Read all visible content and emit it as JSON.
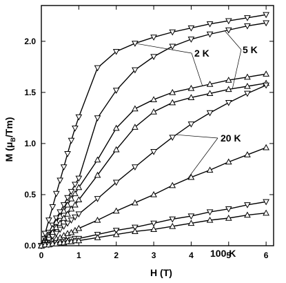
{
  "chart_data": {
    "type": "scatter",
    "xlabel": "H (T)",
    "ylabel_main": "M (",
    "ylabel_mu": "μ",
    "ylabel_sub": "B",
    "ylabel_end": "/Tm)",
    "xlim": [
      0,
      6.2
    ],
    "ylim": [
      0,
      2.35
    ],
    "x_ticks": [
      0,
      1,
      2,
      3,
      4,
      5,
      6
    ],
    "x_tick_labels": [
      "0",
      "1",
      "2",
      "3",
      "4",
      "5",
      "6"
    ],
    "y_ticks": [
      0,
      0.5,
      1.0,
      1.5,
      2.0
    ],
    "y_tick_labels": [
      "0.0",
      "0.5",
      "1.0",
      "1.5",
      "2.0"
    ],
    "grid": false,
    "annotations": [
      {
        "id": "2k",
        "text": "2 K",
        "series": [
          "s1",
          "s3"
        ]
      },
      {
        "id": "5k",
        "text": "5 K",
        "series": [
          "s2",
          "s4"
        ]
      },
      {
        "id": "20k",
        "text": "20 K",
        "series": [
          "s5",
          "s6"
        ]
      },
      {
        "id": "100k",
        "text": "100 K",
        "series": [
          "s7",
          "s8"
        ]
      }
    ],
    "series": [
      {
        "id": "s1",
        "marker": "down-triangle",
        "x": [
          0,
          0.1,
          0.2,
          0.3,
          0.4,
          0.5,
          0.6,
          0.7,
          0.8,
          0.9,
          1.0,
          1.5,
          2.0,
          2.5,
          3.0,
          3.5,
          4.0,
          4.5,
          5.0,
          5.5,
          6.0
        ],
        "y": [
          0.0,
          0.12,
          0.25,
          0.38,
          0.51,
          0.64,
          0.77,
          0.9,
          1.03,
          1.15,
          1.26,
          1.74,
          1.9,
          1.98,
          2.04,
          2.09,
          2.13,
          2.17,
          2.2,
          2.23,
          2.26
        ]
      },
      {
        "id": "s2",
        "marker": "down-triangle",
        "x": [
          0,
          0.1,
          0.2,
          0.3,
          0.4,
          0.5,
          0.6,
          0.7,
          0.8,
          0.9,
          1.0,
          1.5,
          2.0,
          2.5,
          3.0,
          3.5,
          4.0,
          4.5,
          5.0,
          5.5,
          6.0
        ],
        "y": [
          0.0,
          0.07,
          0.13,
          0.2,
          0.27,
          0.33,
          0.4,
          0.47,
          0.53,
          0.6,
          0.66,
          1.25,
          1.52,
          1.72,
          1.85,
          1.95,
          2.02,
          2.07,
          2.11,
          2.15,
          2.18
        ]
      },
      {
        "id": "s3",
        "marker": "up-triangle",
        "x": [
          0,
          0.1,
          0.2,
          0.3,
          0.4,
          0.5,
          0.6,
          0.7,
          0.8,
          0.9,
          1.0,
          1.5,
          2.0,
          2.5,
          3.0,
          3.5,
          4.0,
          4.5,
          5.0,
          5.5,
          6.0
        ],
        "y": [
          0.0,
          0.06,
          0.11,
          0.17,
          0.23,
          0.29,
          0.34,
          0.4,
          0.46,
          0.51,
          0.57,
          0.84,
          1.15,
          1.34,
          1.43,
          1.5,
          1.54,
          1.58,
          1.62,
          1.65,
          1.68
        ]
      },
      {
        "id": "s4",
        "marker": "up-triangle",
        "x": [
          0,
          0.1,
          0.2,
          0.3,
          0.4,
          0.5,
          0.6,
          0.7,
          0.8,
          0.9,
          1.0,
          1.5,
          2.0,
          2.5,
          3.0,
          3.5,
          4.0,
          4.5,
          5.0,
          5.5,
          6.0
        ],
        "y": [
          0.0,
          0.04,
          0.09,
          0.13,
          0.18,
          0.22,
          0.27,
          0.31,
          0.36,
          0.4,
          0.45,
          0.69,
          0.94,
          1.16,
          1.31,
          1.4,
          1.45,
          1.49,
          1.53,
          1.56,
          1.59
        ]
      },
      {
        "id": "s5",
        "marker": "down-triangle",
        "x": [
          0,
          0.1,
          0.2,
          0.3,
          0.4,
          0.5,
          0.6,
          0.7,
          0.8,
          0.9,
          1.0,
          1.5,
          2.0,
          2.5,
          3.0,
          3.5,
          4.0,
          4.5,
          5.0,
          5.5,
          6.0
        ],
        "y": [
          0.0,
          0.03,
          0.06,
          0.09,
          0.12,
          0.16,
          0.19,
          0.22,
          0.25,
          0.28,
          0.31,
          0.46,
          0.62,
          0.77,
          0.92,
          1.06,
          1.19,
          1.3,
          1.4,
          1.49,
          1.57
        ]
      },
      {
        "id": "s6",
        "marker": "up-triangle",
        "x": [
          0,
          0.1,
          0.2,
          0.3,
          0.4,
          0.5,
          0.6,
          0.7,
          0.8,
          0.9,
          1.0,
          1.5,
          2.0,
          2.5,
          3.0,
          3.5,
          4.0,
          4.5,
          5.0,
          5.5,
          6.0
        ],
        "y": [
          0.0,
          0.02,
          0.03,
          0.05,
          0.07,
          0.08,
          0.1,
          0.12,
          0.13,
          0.15,
          0.17,
          0.25,
          0.34,
          0.42,
          0.5,
          0.59,
          0.67,
          0.74,
          0.82,
          0.89,
          0.96
        ]
      },
      {
        "id": "s7",
        "marker": "down-triangle",
        "x": [
          0,
          0.1,
          0.2,
          0.3,
          0.4,
          0.5,
          0.6,
          0.7,
          0.8,
          0.9,
          1.0,
          1.5,
          2.0,
          2.5,
          3.0,
          3.5,
          4.0,
          4.5,
          5.0,
          5.5,
          6.0
        ],
        "y": [
          0.0,
          0.01,
          0.01,
          0.02,
          0.03,
          0.04,
          0.04,
          0.05,
          0.06,
          0.07,
          0.07,
          0.11,
          0.15,
          0.18,
          0.22,
          0.26,
          0.29,
          0.33,
          0.36,
          0.4,
          0.43
        ]
      },
      {
        "id": "s8",
        "marker": "up-triangle",
        "x": [
          0,
          0.1,
          0.2,
          0.3,
          0.4,
          0.5,
          0.6,
          0.7,
          0.8,
          0.9,
          1.0,
          1.5,
          2.0,
          2.5,
          3.0,
          3.5,
          4.0,
          4.5,
          5.0,
          5.5,
          6.0
        ],
        "y": [
          0.0,
          0.01,
          0.01,
          0.02,
          0.02,
          0.03,
          0.03,
          0.04,
          0.04,
          0.05,
          0.05,
          0.08,
          0.11,
          0.14,
          0.16,
          0.19,
          0.22,
          0.25,
          0.27,
          0.3,
          0.32
        ]
      }
    ]
  }
}
